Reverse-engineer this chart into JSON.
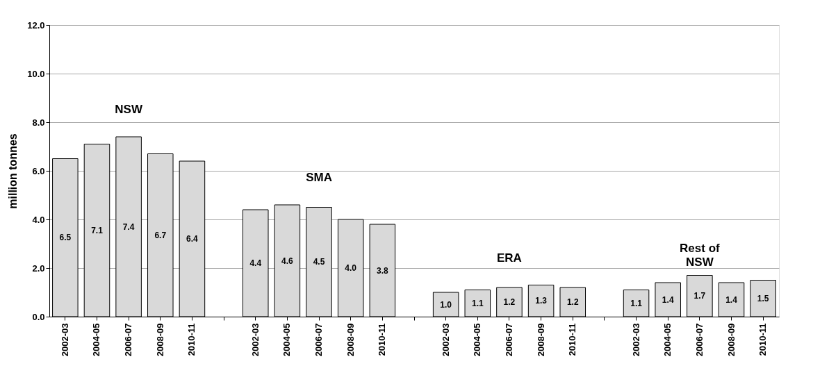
{
  "chart_data": {
    "type": "bar",
    "ylabel": "million tonnes",
    "categories": [
      "2002-03",
      "2004-05",
      "2006-07",
      "2008-09",
      "2010-11",
      null,
      "2002-03",
      "2004-05",
      "2006-07",
      "2008-09",
      "2010-11",
      null,
      "2002-03",
      "2004-05",
      "2006-07",
      "2008-09",
      "2010-11",
      null,
      "2002-03",
      "2004-05",
      "2006-07",
      "2008-09",
      "2010-11"
    ],
    "values": [
      6.5,
      7.1,
      7.4,
      6.7,
      6.4,
      null,
      4.4,
      4.6,
      4.5,
      4.0,
      3.8,
      null,
      1.0,
      1.1,
      1.2,
      1.3,
      1.2,
      null,
      1.1,
      1.4,
      1.7,
      1.4,
      1.5
    ],
    "color": "#d9d9d9",
    "value_labels": [
      "6.5",
      "7.1",
      "7.4",
      "6.7",
      "6.4",
      null,
      "4.4",
      "4.6",
      "4.5",
      "4.0",
      "3.8",
      null,
      "1.0",
      "1.1",
      "1.2",
      "1.3",
      "1.2",
      null,
      "1.1",
      "1.4",
      "1.7",
      "1.4",
      "1.5"
    ],
    "ylim": [
      0,
      12
    ],
    "yticks": [
      {
        "value": 0,
        "label": "0.0"
      },
      {
        "value": 2,
        "label": "2.0"
      },
      {
        "value": 4,
        "label": "4.0"
      },
      {
        "value": 6,
        "label": "6.0"
      },
      {
        "value": 8,
        "label": "8.0"
      },
      {
        "value": 10,
        "label": "10.0"
      },
      {
        "value": 12,
        "label": "12.0"
      }
    ],
    "grid": "y",
    "annotations": [
      "NSW",
      "SMA",
      "ERA",
      "Rest of NSW"
    ]
  }
}
